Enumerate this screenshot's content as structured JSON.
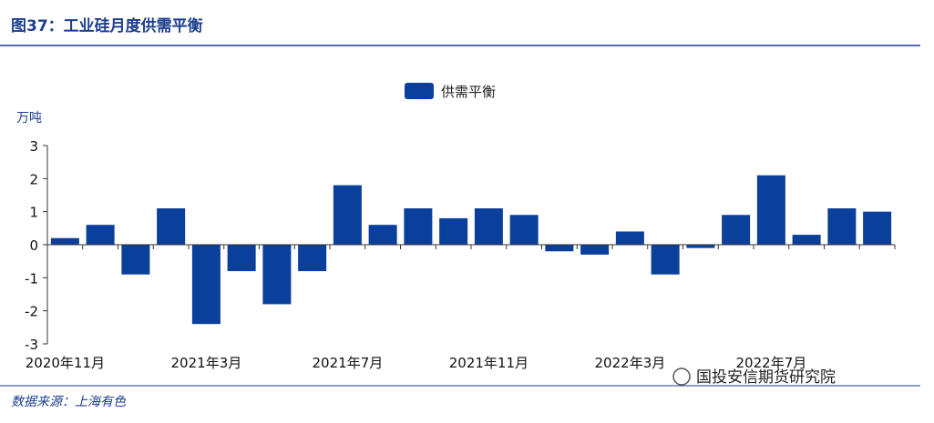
{
  "chart_data": {
    "type": "bar",
    "title": "图37：工业硅月度供需平衡",
    "y_unit": "万吨",
    "source": "数据来源：上海有色",
    "brand": "国投安信期货研究院",
    "categories": [
      "2020年11月",
      null,
      null,
      null,
      "2021年3月",
      null,
      null,
      null,
      "2021年7月",
      null,
      null,
      null,
      "2021年11月",
      null,
      null,
      null,
      "2022年3月",
      null,
      null,
      null,
      "2022年7月",
      null,
      null,
      null
    ],
    "series": [
      {
        "name": "供需平衡",
        "color": "#0a3f9c",
        "values": [
          0.2,
          0.6,
          -0.9,
          1.1,
          -2.4,
          -0.8,
          -1.8,
          -0.8,
          1.8,
          0.6,
          1.1,
          0.8,
          1.1,
          0.9,
          -0.2,
          -0.3,
          0.4,
          -0.9,
          -0.1,
          0.9,
          2.1,
          0.3,
          1.1,
          1.0
        ]
      }
    ],
    "ylim": [
      -3,
      3
    ],
    "yticks": [
      -3,
      -2,
      -1,
      0,
      1,
      2,
      3
    ]
  }
}
